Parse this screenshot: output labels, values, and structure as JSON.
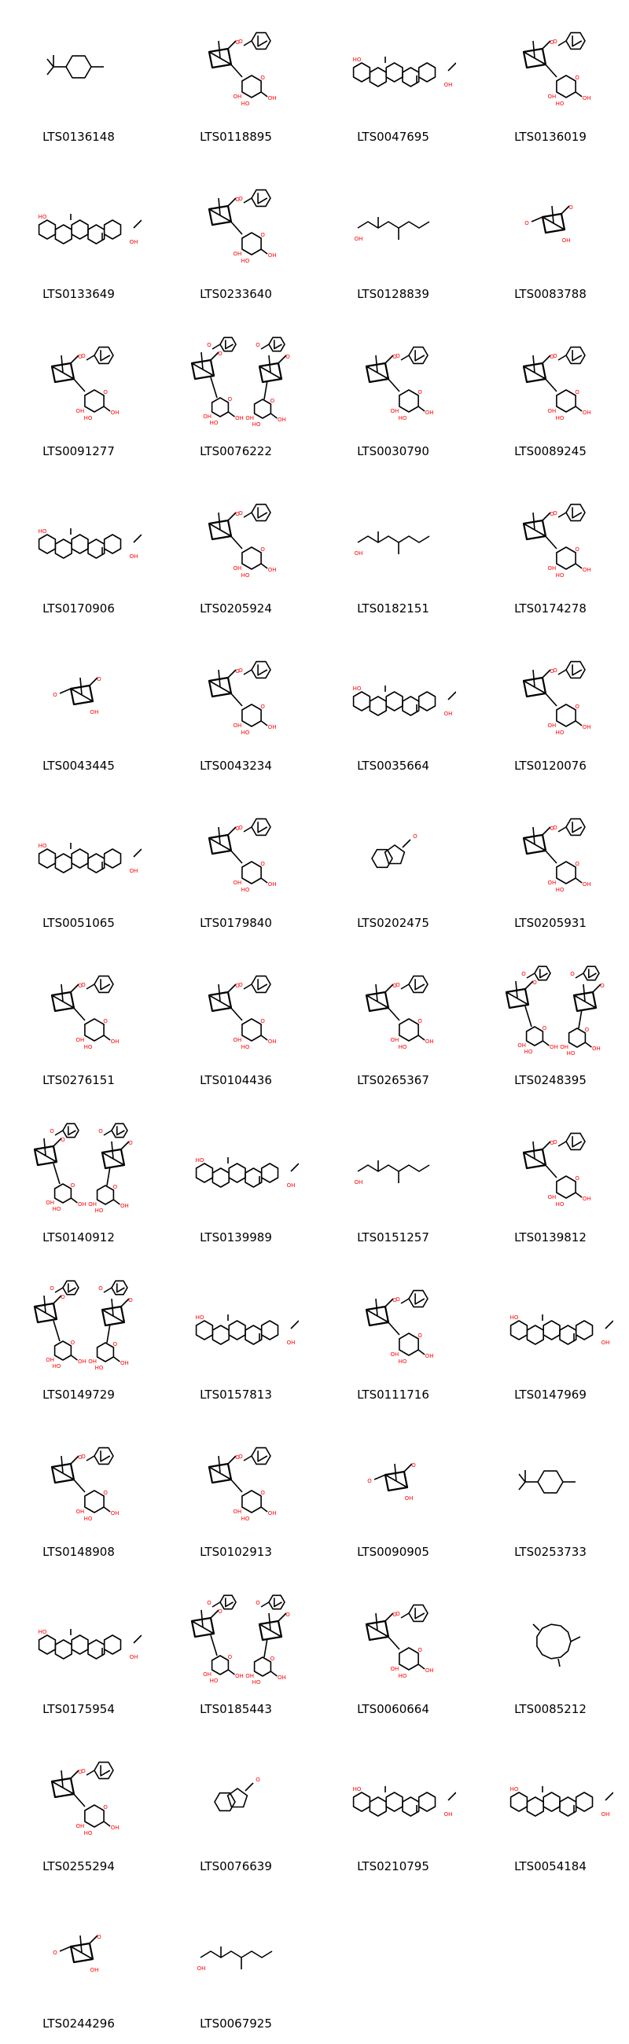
{
  "colors": {
    "bond": "#000000",
    "oxygen": "#ff0000",
    "background": "#ffffff"
  },
  "molecules": [
    {
      "id": "LTS0136148",
      "kind": "para"
    },
    {
      "id": "LTS0118895",
      "kind": "glycoside"
    },
    {
      "id": "LTS0047695",
      "kind": "triterpene"
    },
    {
      "id": "LTS0136019",
      "kind": "glycoside"
    },
    {
      "id": "LTS0133649",
      "kind": "triterpene"
    },
    {
      "id": "LTS0233640",
      "kind": "glycoside"
    },
    {
      "id": "LTS0128839",
      "kind": "chain"
    },
    {
      "id": "LTS0083788",
      "kind": "bicyclic"
    },
    {
      "id": "LTS0091277",
      "kind": "glycoside"
    },
    {
      "id": "LTS0076222",
      "kind": "dimer"
    },
    {
      "id": "LTS0030790",
      "kind": "glycoside"
    },
    {
      "id": "LTS0089245",
      "kind": "glycoside"
    },
    {
      "id": "LTS0170906",
      "kind": "triterpene"
    },
    {
      "id": "LTS0205924",
      "kind": "glycoside"
    },
    {
      "id": "LTS0182151",
      "kind": "chain"
    },
    {
      "id": "LTS0174278",
      "kind": "glycoside"
    },
    {
      "id": "LTS0043445",
      "kind": "bicyclic"
    },
    {
      "id": "LTS0043234",
      "kind": "glycoside"
    },
    {
      "id": "LTS0035664",
      "kind": "triterpene"
    },
    {
      "id": "LTS0120076",
      "kind": "glycoside"
    },
    {
      "id": "LTS0051065",
      "kind": "triterpene"
    },
    {
      "id": "LTS0179840",
      "kind": "glycoside"
    },
    {
      "id": "LTS0202475",
      "kind": "small"
    },
    {
      "id": "LTS0205931",
      "kind": "glycoside"
    },
    {
      "id": "LTS0276151",
      "kind": "glycoside"
    },
    {
      "id": "LTS0104436",
      "kind": "glycoside"
    },
    {
      "id": "LTS0265367",
      "kind": "glycoside"
    },
    {
      "id": "LTS0248395",
      "kind": "dimer"
    },
    {
      "id": "LTS0140912",
      "kind": "dimer"
    },
    {
      "id": "LTS0139989",
      "kind": "triterpene"
    },
    {
      "id": "LTS0151257",
      "kind": "chain"
    },
    {
      "id": "LTS0139812",
      "kind": "glycoside"
    },
    {
      "id": "LTS0149729",
      "kind": "dimer"
    },
    {
      "id": "LTS0157813",
      "kind": "triterpene"
    },
    {
      "id": "LTS0111716",
      "kind": "glycoside"
    },
    {
      "id": "LTS0147969",
      "kind": "triterpene"
    },
    {
      "id": "LTS0148908",
      "kind": "glycoside"
    },
    {
      "id": "LTS0102913",
      "kind": "glycoside"
    },
    {
      "id": "LTS0090905",
      "kind": "bicyclic"
    },
    {
      "id": "LTS0253733",
      "kind": "para"
    },
    {
      "id": "LTS0175954",
      "kind": "triterpene"
    },
    {
      "id": "LTS0185443",
      "kind": "dimer"
    },
    {
      "id": "LTS0060664",
      "kind": "glycoside"
    },
    {
      "id": "LTS0085212",
      "kind": "macro"
    },
    {
      "id": "LTS0255294",
      "kind": "glycoside"
    },
    {
      "id": "LTS0076639",
      "kind": "small"
    },
    {
      "id": "LTS0210795",
      "kind": "triterpene"
    },
    {
      "id": "LTS0054184",
      "kind": "triterpene"
    },
    {
      "id": "LTS0244296",
      "kind": "bicyclic"
    },
    {
      "id": "LTS0067925",
      "kind": "chain"
    }
  ]
}
